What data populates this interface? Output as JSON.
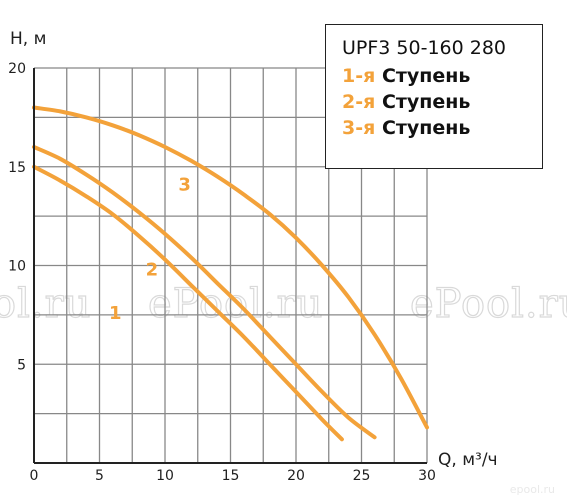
{
  "chart_data": {
    "type": "line",
    "xlabel": "Q, м³/ч",
    "ylabel": "H, м",
    "xlim": [
      0,
      30
    ],
    "ylim": [
      0,
      20
    ],
    "x_ticks": [
      0,
      5,
      10,
      15,
      20,
      25,
      30
    ],
    "y_ticks": [
      5,
      10,
      15,
      20
    ],
    "grid": true,
    "series": [
      {
        "name": "1",
        "x": [
          0,
          2,
          4,
          6,
          8,
          10,
          12,
          14,
          16,
          18,
          20,
          22,
          23.5
        ],
        "y": [
          15.0,
          14.3,
          13.5,
          12.6,
          11.5,
          10.3,
          9.0,
          7.7,
          6.4,
          5.0,
          3.6,
          2.2,
          1.2
        ]
      },
      {
        "name": "2",
        "x": [
          0,
          2,
          4,
          6,
          8,
          10,
          12,
          14,
          16,
          18,
          20,
          22,
          24,
          26
        ],
        "y": [
          16.0,
          15.4,
          14.6,
          13.7,
          12.7,
          11.6,
          10.4,
          9.1,
          7.8,
          6.4,
          5.0,
          3.6,
          2.3,
          1.3
        ]
      },
      {
        "name": "3",
        "x": [
          0,
          2,
          4,
          6,
          8,
          10,
          12,
          14,
          16,
          18,
          20,
          22,
          24,
          26,
          28,
          30
        ],
        "y": [
          18.0,
          17.8,
          17.5,
          17.1,
          16.6,
          16.0,
          15.3,
          14.5,
          13.6,
          12.6,
          11.4,
          10.0,
          8.4,
          6.5,
          4.3,
          1.8
        ]
      }
    ],
    "colors": {
      "curve": "#f3a23a",
      "curve_label": "#f3a23a",
      "grid": "#888888",
      "axis": "#222222"
    }
  },
  "legend": {
    "title": "UPF3 50-160 280",
    "rows": [
      {
        "num": "1-я",
        "word": "Ступень"
      },
      {
        "num": "2-я",
        "word": "Ступень"
      },
      {
        "num": "3-я",
        "word": "Ступень"
      }
    ]
  },
  "watermarks": [
    "ol.ru",
    "ePool.ru",
    "ePool.ru"
  ],
  "corner_mark": "epool.ru"
}
